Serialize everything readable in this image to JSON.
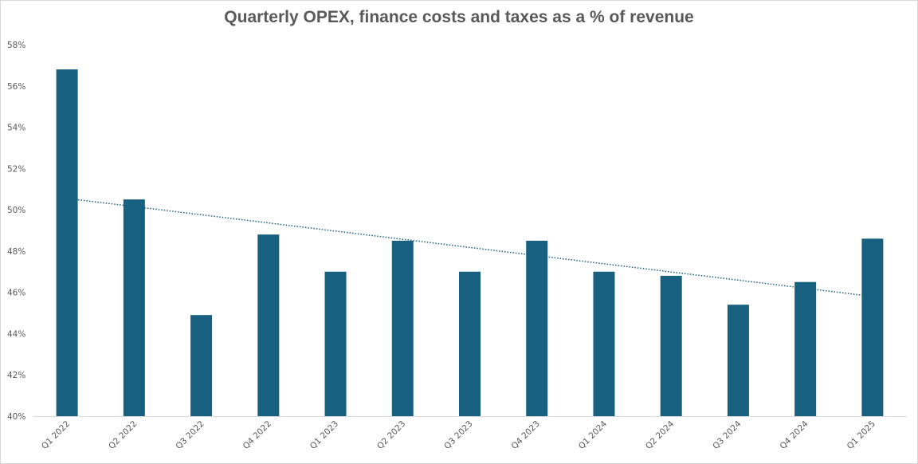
{
  "chart_data": {
    "type": "bar",
    "title": "Quarterly OPEX, finance costs and taxes as a % of revenue",
    "xlabel": "",
    "ylabel": "",
    "categories": [
      "Q1 2022",
      "Q2 2022",
      "Q3 2022",
      "Q4 2022",
      "Q1 2023",
      "Q2 2023",
      "Q3 2023",
      "Q4 2023",
      "Q1 2024",
      "Q2 2024",
      "Q3 2024",
      "Q4 2024",
      "Q1 2025"
    ],
    "series": [
      {
        "name": "OPEX, finance costs and taxes as % of revenue",
        "color": "#17607f",
        "values": [
          56.8,
          50.5,
          44.9,
          48.8,
          47.0,
          48.5,
          47.0,
          48.5,
          47.0,
          46.8,
          45.4,
          46.5,
          48.6
        ]
      }
    ],
    "trendline": {
      "type": "linear",
      "style": "dotted",
      "color": "#17607f",
      "start": 50.55,
      "end": 45.8
    },
    "ylim": [
      40,
      58
    ],
    "yticks": [
      40,
      42,
      44,
      46,
      48,
      50,
      52,
      54,
      56,
      58
    ],
    "ytick_format": "percent",
    "grid": false,
    "legend": "none"
  }
}
